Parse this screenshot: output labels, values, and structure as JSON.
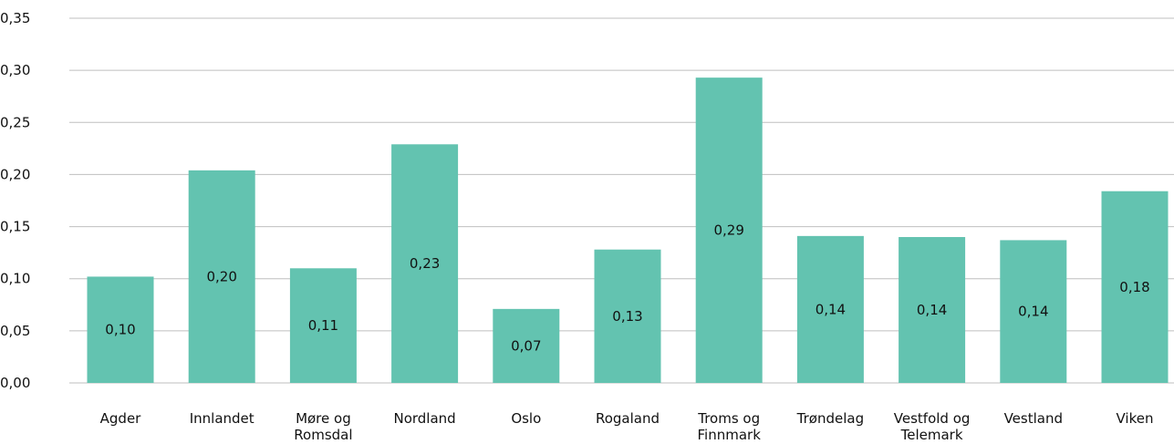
{
  "chart_data": {
    "type": "bar",
    "categories": [
      [
        "Agder"
      ],
      [
        "Innlandet"
      ],
      [
        "Møre og",
        "Romsdal"
      ],
      [
        "Nordland"
      ],
      [
        "Oslo"
      ],
      [
        "Rogaland"
      ],
      [
        "Troms og",
        "Finnmark"
      ],
      [
        "Trøndelag"
      ],
      [
        "Vestfold og",
        "Telemark"
      ],
      [
        "Vestland"
      ],
      [
        "Viken"
      ]
    ],
    "values": [
      0.102,
      0.204,
      0.11,
      0.229,
      0.071,
      0.128,
      0.293,
      0.141,
      0.14,
      0.137,
      0.184
    ],
    "data_labels": [
      "0,10",
      "0,20",
      "0,11",
      "0,23",
      "0,07",
      "0,13",
      "0,29",
      "0,14",
      "0,14",
      "0,14",
      "0,18"
    ],
    "yticks": [
      "0,00",
      "0,05",
      "0,10",
      "0,15",
      "0,20",
      "0,25",
      "0,30",
      "0,35"
    ],
    "ylim": [
      0,
      0.35
    ],
    "grid": true,
    "bar_color": "#63c3b0",
    "title": "",
    "xlabel": "",
    "ylabel": ""
  }
}
